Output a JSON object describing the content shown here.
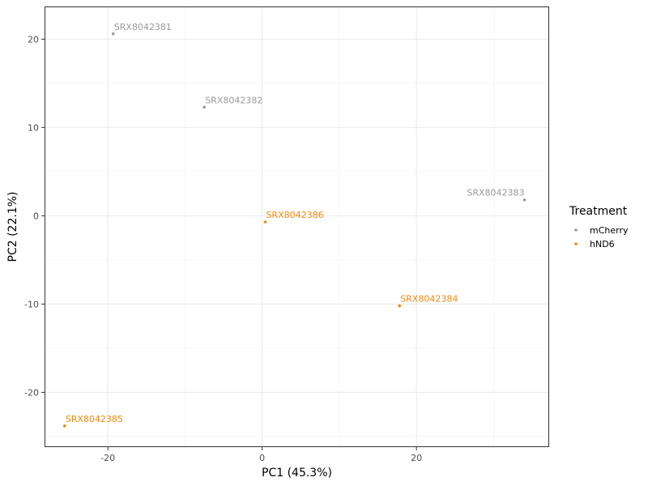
{
  "chart_data": {
    "type": "scatter",
    "xlabel": "PC1 (45.3%)",
    "ylabel": "PC2 (22.1%)",
    "xlim": [
      -28.2,
      37.2
    ],
    "ylim": [
      -26.2,
      23.7
    ],
    "x_ticks": [
      -20,
      0,
      20
    ],
    "x_tick_labels": [
      "-20",
      "0",
      "20"
    ],
    "y_ticks": [
      -20,
      -10,
      0,
      10,
      20
    ],
    "y_tick_labels": [
      "-20",
      "-10",
      "0",
      "10",
      "20"
    ],
    "grid": true,
    "legend": {
      "title": "Treatment",
      "position": "right",
      "entries": [
        {
          "label": "mCherry",
          "color": "#999999"
        },
        {
          "label": "hND6",
          "color": "#f08a0c"
        }
      ]
    },
    "series": [
      {
        "name": "mCherry",
        "color": "#999999",
        "points": [
          {
            "x": -19.3,
            "y": 20.6,
            "label": "SRX8042381"
          },
          {
            "x": -7.5,
            "y": 12.3,
            "label": "SRX8042382"
          },
          {
            "x": 34.0,
            "y": 1.8,
            "label": "SRX8042383"
          }
        ]
      },
      {
        "name": "hND6",
        "color": "#f08a0c",
        "points": [
          {
            "x": 0.4,
            "y": -0.7,
            "label": "SRX8042386"
          },
          {
            "x": 17.8,
            "y": -10.2,
            "label": "SRX8042384"
          },
          {
            "x": -25.6,
            "y": -23.8,
            "label": "SRX8042385"
          }
        ]
      }
    ]
  }
}
